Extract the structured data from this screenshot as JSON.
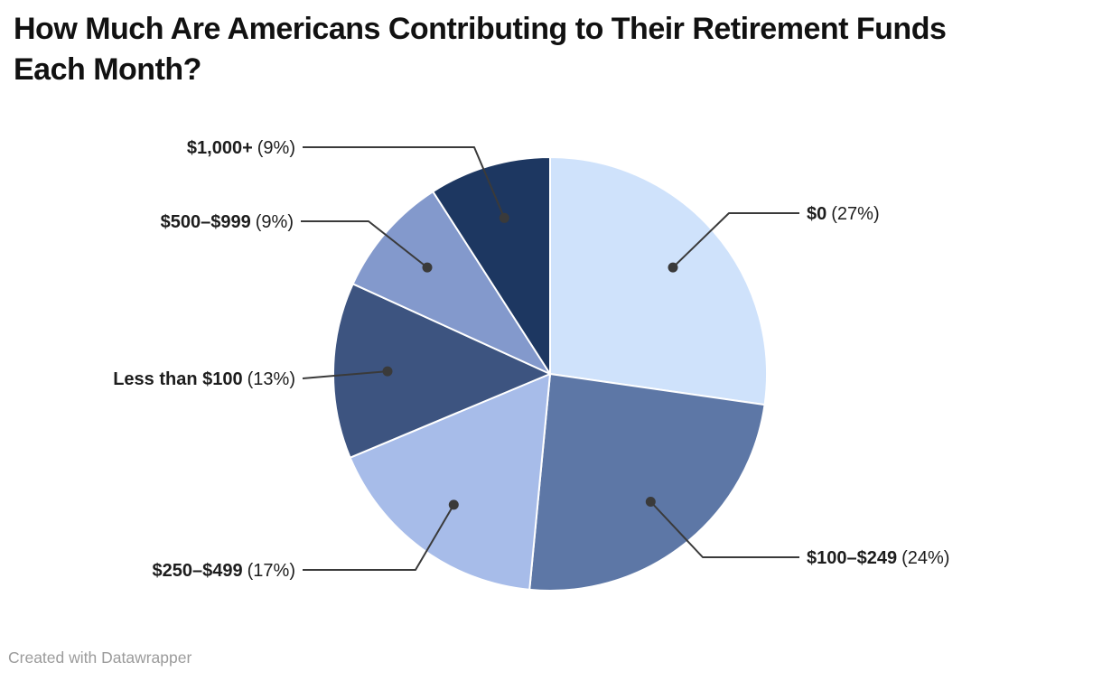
{
  "page": {
    "footer_credit": "Created with Datawrapper"
  },
  "chart_data": {
    "type": "pie",
    "title": "How Much Are Americans Contributing to Their Retirement Funds Each Month?",
    "direction": "clockwise",
    "start_angle": "12-oclock",
    "legend": "none",
    "label_style": "outside labels with leader lines and dots",
    "slices": [
      {
        "label": "$0",
        "pct": 27,
        "pct_label": "(27%)",
        "color": "#cfe2fb"
      },
      {
        "label": "$100–$249",
        "pct": 24,
        "pct_label": "(24%)",
        "color": "#5d77a6"
      },
      {
        "label": "$250–$499",
        "pct": 17,
        "pct_label": "(17%)",
        "color": "#a7bce9"
      },
      {
        "label": "Less than $100",
        "pct": 13,
        "pct_label": "(13%)",
        "color": "#3d5480"
      },
      {
        "label": "$500–$999",
        "pct": 9,
        "pct_label": "(9%)",
        "color": "#8399cc"
      },
      {
        "label": "$1,000+",
        "pct": 9,
        "pct_label": "(9%)",
        "color": "#1d3761"
      }
    ],
    "colors": {
      "leader_line": "#3a3a3a",
      "label_text": "#1d1d1d",
      "slice_separator": "#ffffff"
    }
  }
}
